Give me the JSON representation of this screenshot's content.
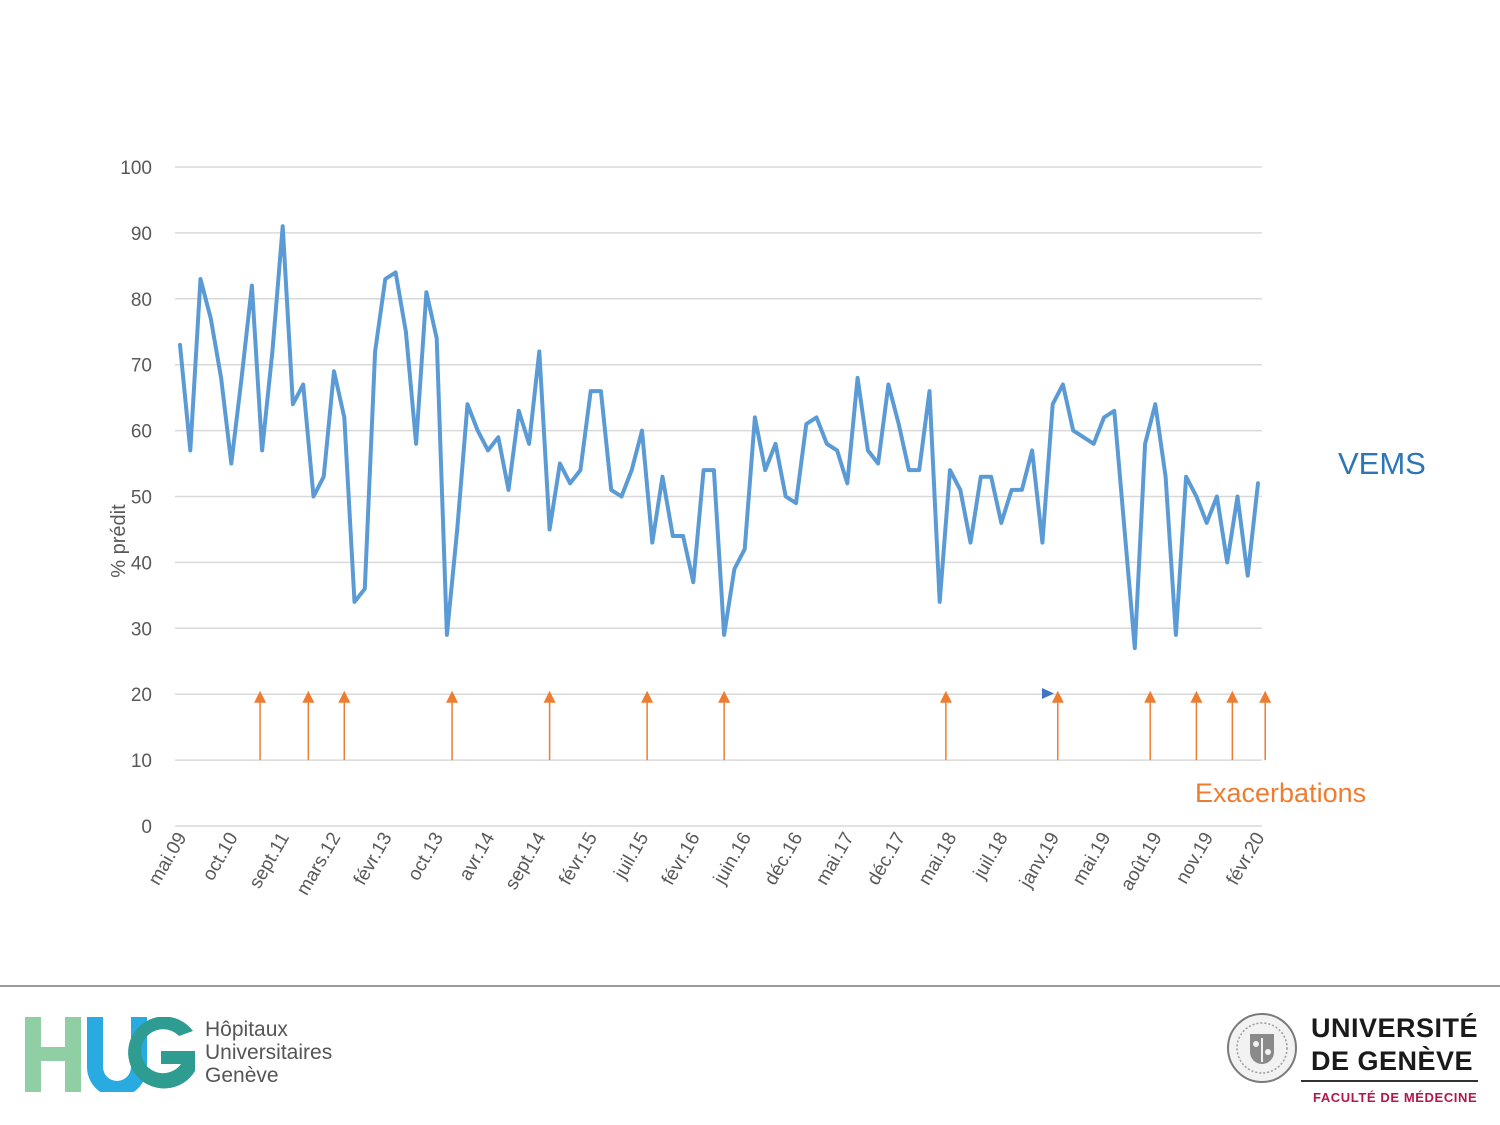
{
  "chart_data": {
    "type": "line",
    "ylabel": "% prédit",
    "ylim": [
      0,
      100
    ],
    "yticks": [
      0,
      10,
      20,
      30,
      40,
      50,
      60,
      70,
      80,
      90,
      100
    ],
    "grid": true,
    "x_tick_labels": [
      "mai.09",
      "oct.10",
      "sept.11",
      "mars.12",
      "févr.13",
      "oct.13",
      "avr.14",
      "sept.14",
      "févr.15",
      "juil.15",
      "févr.16",
      "juin.16",
      "déc.16",
      "mai.17",
      "déc.17",
      "mai.18",
      "juil.18",
      "janv.19",
      "mai.19",
      "août.19",
      "nov.19",
      "févr.20"
    ],
    "series": [
      {
        "name": "VEMS",
        "color": "#5b9bd5",
        "values": [
          73,
          57,
          83,
          77,
          68,
          55,
          68,
          82,
          57,
          72,
          91,
          64,
          67,
          50,
          53,
          69,
          62,
          34,
          36,
          72,
          83,
          84,
          75,
          58,
          81,
          74,
          29,
          45,
          64,
          60,
          57,
          59,
          51,
          63,
          58,
          72,
          45,
          55,
          52,
          54,
          66,
          66,
          51,
          50,
          54,
          60,
          43,
          53,
          44,
          44,
          37,
          54,
          54,
          29,
          39,
          42,
          62,
          54,
          58,
          50,
          49,
          61,
          62,
          58,
          57,
          52,
          68,
          57,
          55,
          67,
          61,
          54,
          54,
          66,
          34,
          54,
          51,
          43,
          53,
          53,
          46,
          51,
          51,
          57,
          43,
          64,
          67,
          60,
          59,
          58,
          62,
          63,
          45,
          27,
          58,
          64,
          53,
          29,
          53,
          50,
          46,
          50,
          40,
          50,
          38,
          52
        ]
      }
    ],
    "exacerbations": {
      "name": "Exacerbations",
      "color": "#ed7d31",
      "positions": [
        7.8,
        12.5,
        16,
        26.5,
        36,
        45.5,
        53,
        74.6,
        85.5,
        94.5,
        99,
        102.5,
        105.7
      ]
    },
    "legend": {
      "vems": "VEMS",
      "exacerbations": "Exacerbations"
    }
  },
  "footer": {
    "hug": {
      "logo_text": "HUG",
      "line1": "Hôpitaux",
      "line2": "Universitaires",
      "line3": "Genève"
    },
    "unige": {
      "line1": "UNIVERSITÉ",
      "line2": "DE GENÈVE",
      "faculty": "FACULTÉ DE MÉDECINE"
    }
  }
}
